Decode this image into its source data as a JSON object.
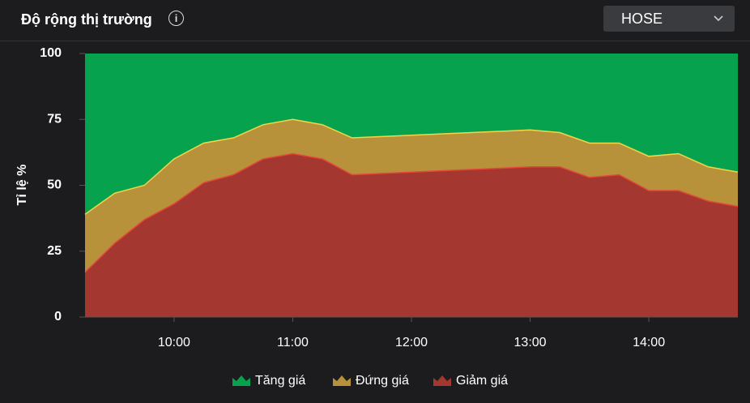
{
  "chart_data": {
    "type": "area",
    "stacked": true,
    "title": "Độ rộng thị trường",
    "dropdown": "HOSE",
    "ylabel": "Tỉ lệ %",
    "x": [
      "09:15",
      "09:30",
      "09:45",
      "10:00",
      "10:15",
      "10:30",
      "10:45",
      "11:00",
      "11:15",
      "11:30",
      "13:00",
      "13:15",
      "13:30",
      "13:45",
      "14:00",
      "14:15",
      "14:30",
      "14:45"
    ],
    "xlim": [
      "09:15",
      "14:45"
    ],
    "xticks": [
      "10:00",
      "11:00",
      "12:00",
      "13:00",
      "14:00"
    ],
    "ylim": [
      0,
      100
    ],
    "yticks": [
      0,
      25,
      50,
      75,
      100
    ],
    "series": [
      {
        "name": "Tăng giá",
        "color": "#07a24e",
        "values": [
          61,
          53,
          50,
          40,
          34,
          32,
          27,
          25,
          27,
          32,
          29,
          30,
          34,
          34,
          39,
          38,
          43,
          45
        ]
      },
      {
        "name": "Đứng giá",
        "color": "#b8923a",
        "values": [
          22,
          19,
          13,
          17,
          15,
          14,
          13,
          13,
          13,
          14,
          14,
          13,
          13,
          12,
          13,
          14,
          13,
          13
        ]
      },
      {
        "name": "Giảm giá",
        "color": "#a43830",
        "values": [
          17,
          28,
          37,
          43,
          51,
          54,
          60,
          62,
          60,
          54,
          57,
          57,
          53,
          54,
          48,
          48,
          44,
          42
        ]
      }
    ]
  }
}
